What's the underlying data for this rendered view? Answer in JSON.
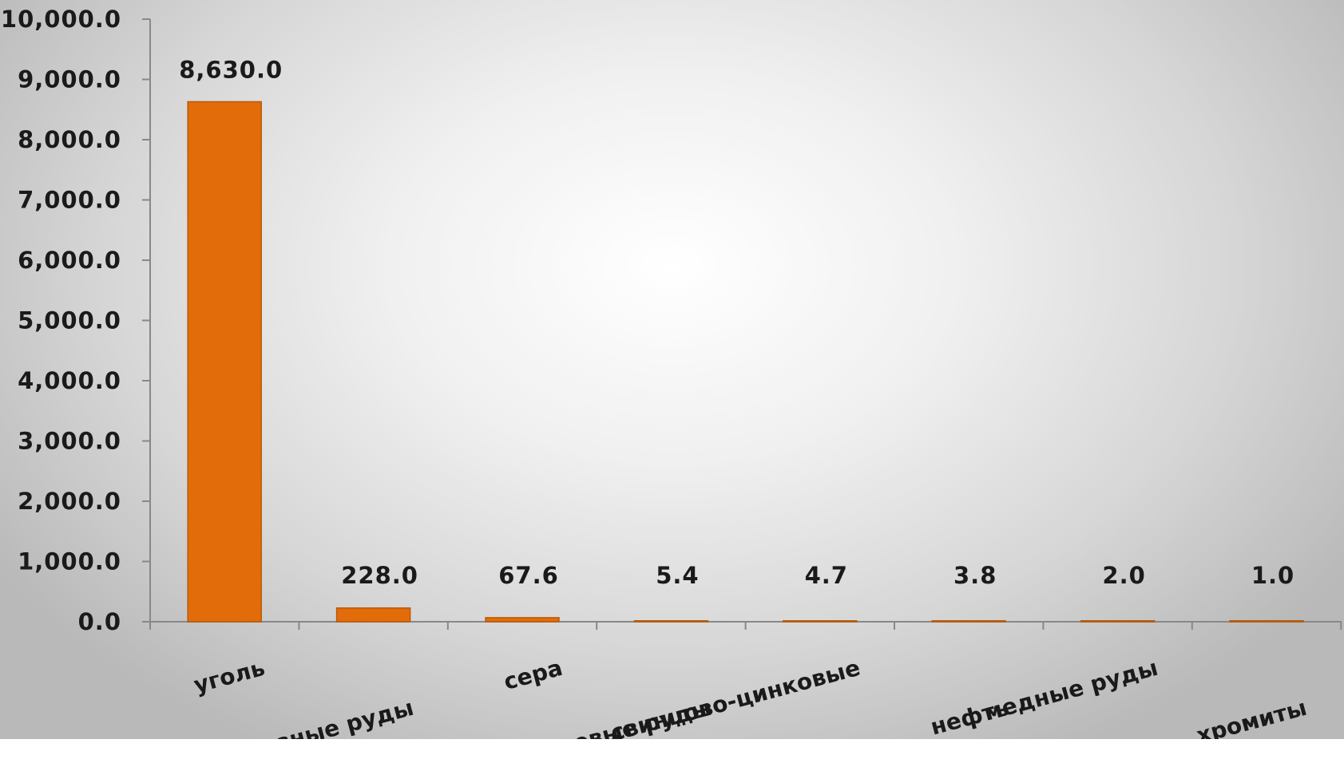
{
  "chart_data": {
    "type": "bar",
    "categories": [
      "уголь",
      "железные руды",
      "сера",
      "марганцевые руды",
      "свинцово-цинковые",
      "нефть",
      "медные руды",
      "хромиты"
    ],
    "values": [
      8630.0,
      228.0,
      67.6,
      5.4,
      4.7,
      3.8,
      2.0,
      1.0
    ],
    "value_labels": [
      "8,630.0",
      "228.0",
      "67.6",
      "5.4",
      "4.7",
      "3.8",
      "2.0",
      "1.0"
    ],
    "ylim": [
      0,
      10000
    ],
    "y_ticks": [
      {
        "value": 0,
        "label": "0.0"
      },
      {
        "value": 1000,
        "label": "1,000.0"
      },
      {
        "value": 2000,
        "label": "2,000.0"
      },
      {
        "value": 3000,
        "label": "3,000.0"
      },
      {
        "value": 4000,
        "label": "4,000.0"
      },
      {
        "value": 5000,
        "label": "5,000.0"
      },
      {
        "value": 6000,
        "label": "6,000.0"
      },
      {
        "value": 7000,
        "label": "7,000.0"
      },
      {
        "value": 8000,
        "label": "8,000.0"
      },
      {
        "value": 9000,
        "label": "9,000.0"
      },
      {
        "value": 10000,
        "label": "10,000.0"
      }
    ],
    "title": "",
    "xlabel": "",
    "ylabel": "",
    "grid": false,
    "legend": "none",
    "bar_color": "#e36c0a",
    "bar_edge_color": "#b85a08",
    "axis_color": "#888888"
  }
}
